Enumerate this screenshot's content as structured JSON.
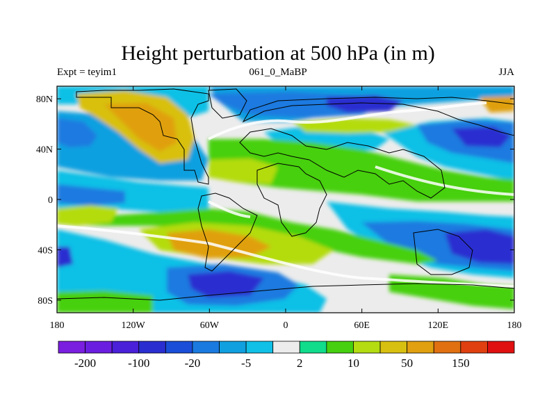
{
  "title": "Height perturbation at 500 hPa (in m)",
  "left_label": "Expt = teyim1",
  "center_label": "061_0_MaBP",
  "right_label": "JJA",
  "lon_ticks": [
    {
      "lon": -180,
      "label": "180"
    },
    {
      "lon": -120,
      "label": "120W"
    },
    {
      "lon": -60,
      "label": "60W"
    },
    {
      "lon": 0,
      "label": "0"
    },
    {
      "lon": 60,
      "label": "60E"
    },
    {
      "lon": 120,
      "label": "120E"
    },
    {
      "lon": 180,
      "label": "180"
    }
  ],
  "lat_ticks": [
    {
      "lat": 80,
      "label": "80N"
    },
    {
      "lat": 40,
      "label": "40N"
    },
    {
      "lat": 0,
      "label": "0"
    },
    {
      "lat": -40,
      "label": "40S"
    },
    {
      "lat": -80,
      "label": "80S"
    }
  ],
  "colorbar": {
    "colors": [
      "#7a1ee0",
      "#6a1ee0",
      "#4a20d8",
      "#2a2ed0",
      "#1a4ed8",
      "#1a7ae0",
      "#10a0e0",
      "#10c0e6",
      "#ececec",
      "#10dc8c",
      "#46d010",
      "#b4dc10",
      "#d8c010",
      "#e0a010",
      "#e07010",
      "#e04010",
      "#e01010"
    ],
    "labels": [
      {
        "after_box": 1,
        "text": "-200"
      },
      {
        "after_box": 3,
        "text": "-100"
      },
      {
        "after_box": 5,
        "text": "-20"
      },
      {
        "after_box": 7,
        "text": "-5"
      },
      {
        "after_box": 9,
        "text": "2"
      },
      {
        "after_box": 11,
        "text": "10"
      },
      {
        "after_box": 13,
        "text": "50"
      },
      {
        "after_box": 15,
        "text": "150"
      }
    ]
  }
}
